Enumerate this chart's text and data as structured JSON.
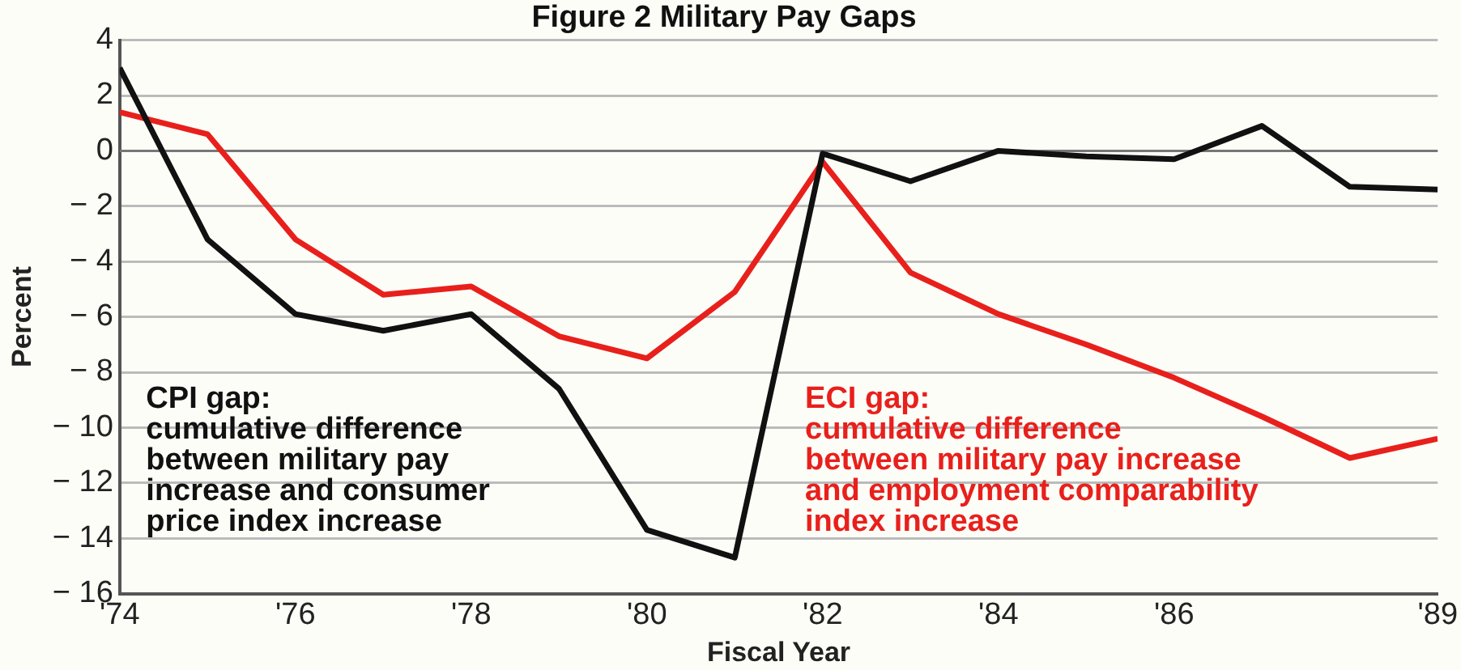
{
  "chart_data": {
    "type": "line",
    "title": "Figure 2 Military Pay Gaps",
    "xlabel": "Fiscal Year",
    "ylabel": "Percent",
    "x": [
      1974,
      1975,
      1976,
      1977,
      1978,
      1979,
      1980,
      1981,
      1982,
      1983,
      1984,
      1985,
      1986,
      1987,
      1988,
      1989
    ],
    "series": [
      {
        "color": "#111111",
        "values": [
          3.0,
          -3.2,
          -5.9,
          -6.5,
          -5.9,
          -8.6,
          -13.7,
          -14.7,
          -0.1,
          -1.1,
          0.0,
          -0.2,
          -0.3,
          0.9,
          -1.3,
          -1.4
        ]
      },
      {
        "color": "#e8201c",
        "values": [
          1.4,
          0.6,
          -3.2,
          -5.2,
          -4.9,
          -6.7,
          -7.5,
          -5.1,
          -0.4,
          -4.4,
          -5.9,
          -7.0,
          -8.2,
          -9.6,
          -11.1,
          -10.4
        ]
      }
    ],
    "xlim": [
      1974,
      1989
    ],
    "xticks": [
      {
        "value": 1974,
        "label": "'74"
      },
      {
        "value": 1976,
        "label": "'76"
      },
      {
        "value": 1978,
        "label": "'78"
      },
      {
        "value": 1980,
        "label": "'80"
      },
      {
        "value": 1982,
        "label": "'82"
      },
      {
        "value": 1984,
        "label": "'84"
      },
      {
        "value": 1986,
        "label": "'86"
      },
      {
        "value": 1989,
        "label": "'89"
      }
    ],
    "ylim": [
      -16,
      4
    ],
    "yticks": [
      4,
      2,
      0,
      {
        "value": -2,
        "label": "− 2"
      },
      {
        "value": -4,
        "label": "− 4"
      },
      {
        "value": -6,
        "label": "− 6"
      },
      {
        "value": -8,
        "label": "− 8"
      },
      {
        "value": -10,
        "label": "− 10"
      },
      {
        "value": -12,
        "label": "− 12"
      },
      {
        "value": -14,
        "label": "− 14"
      },
      {
        "value": -16,
        "label": "− 16"
      }
    ],
    "grid": "y",
    "line_style": "solid",
    "marker": "none",
    "legend": false,
    "ref_lines": [
      {
        "axis": "y",
        "value": 0,
        "color": "#777777"
      }
    ],
    "annotations": [
      "CPI gap:\ncumulative difference\nbetween military pay\nincrease and consumer\nprice index increase",
      "ECI gap:\ncumulative difference\nbetween military pay increase\nand employment comparability\nindex increase"
    ]
  }
}
